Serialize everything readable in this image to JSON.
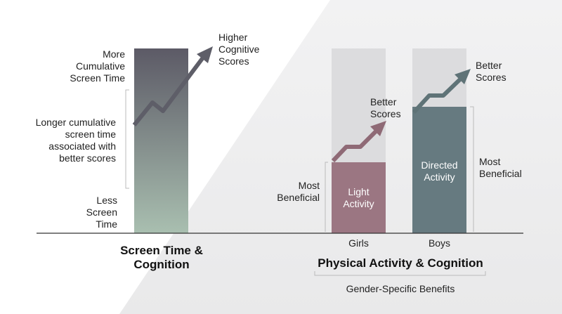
{
  "left_panel": {
    "top_label": "More\nCumulative\nScreen Time",
    "middle_label": "Longer cumulative\nscreen time\nassociated with\nbetter scores",
    "bottom_label": "Less\nScreen\nTime",
    "arrow_label": "Higher\nCognitive\nScores",
    "title": "Screen Time &\nCognition"
  },
  "right_panel": {
    "girls": {
      "bar_label": "Light\nActivity",
      "side_label": "Most\nBeneficial",
      "arrow_label": "Better\nScores",
      "category": "Girls"
    },
    "boys": {
      "bar_label": "Directed\nActivity",
      "side_label": "Most\nBeneficial",
      "arrow_label": "Better\nScores",
      "category": "Boys"
    },
    "title": "Physical Activity & Cognition",
    "subtitle": "Gender-Specific Benefits"
  },
  "colors": {
    "gradient_top": "#5c5a66",
    "gradient_bottom": "#a9bfb0",
    "girls_bar": "#9b7682",
    "boys_bar": "#667a80",
    "girls_arrow": "#8f6a76",
    "boys_arrow": "#5f7377",
    "left_arrow": "#5e5e68",
    "ghost_bar": "#dcdcde"
  }
}
